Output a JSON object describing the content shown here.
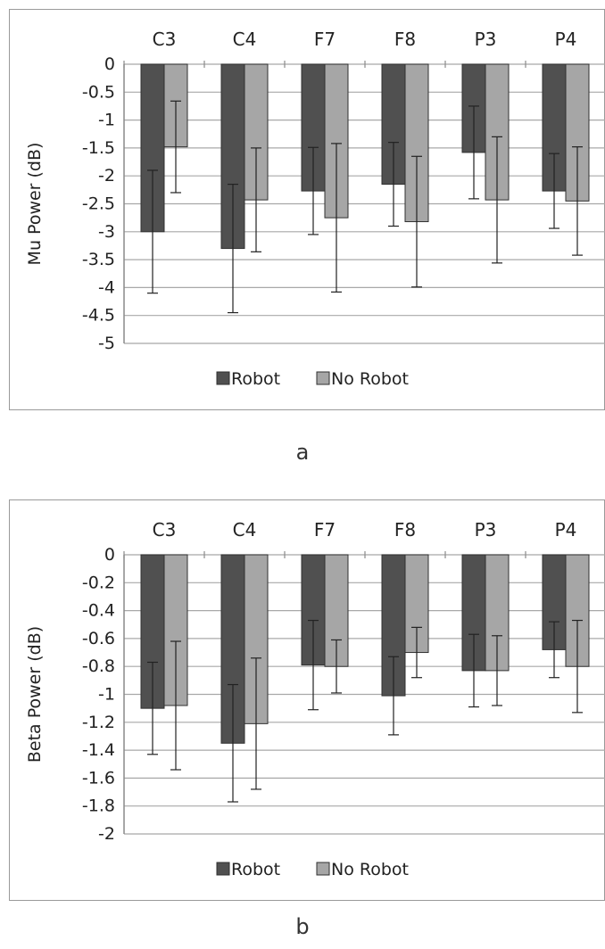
{
  "chart_data": [
    {
      "type": "bar",
      "panel_label": "a",
      "categories": [
        "C3",
        "C4",
        "F7",
        "F8",
        "P3",
        "P4"
      ],
      "ylabel": "Mu Power (dB)",
      "ylim": [
        -5,
        0
      ],
      "ytick_step": 0.5,
      "yticks": [
        "0",
        "-0.5",
        "-1",
        "-1.5",
        "-2",
        "-2.5",
        "-3",
        "-3.5",
        "-4",
        "-4.5",
        "-5"
      ],
      "category_axis": "top",
      "grid": true,
      "legend_position": "bottom",
      "series": [
        {
          "name": "Robot",
          "color": "#505050",
          "values": [
            -3.0,
            -3.3,
            -2.27,
            -2.15,
            -1.58,
            -2.27
          ],
          "error": [
            1.1,
            1.15,
            0.78,
            0.75,
            0.83,
            0.67
          ]
        },
        {
          "name": "No Robot",
          "color": "#a6a6a6",
          "values": [
            -1.48,
            -2.43,
            -2.75,
            -2.82,
            -2.43,
            -2.45
          ],
          "error": [
            0.82,
            0.93,
            1.33,
            1.17,
            1.13,
            0.97
          ]
        }
      ]
    },
    {
      "type": "bar",
      "panel_label": "b",
      "categories": [
        "C3",
        "C4",
        "F7",
        "F8",
        "P3",
        "P4"
      ],
      "ylabel": "Beta Power (dB)",
      "ylim": [
        -2,
        0
      ],
      "ytick_step": 0.2,
      "yticks": [
        "0",
        "-0.2",
        "-0.4",
        "-0.6",
        "-0.8",
        "-1",
        "-1.2",
        "-1.4",
        "-1.6",
        "-1.8",
        "-2"
      ],
      "category_axis": "top",
      "grid": true,
      "legend_position": "bottom",
      "series": [
        {
          "name": "Robot",
          "color": "#505050",
          "values": [
            -1.1,
            -1.35,
            -0.79,
            -1.01,
            -0.83,
            -0.68
          ],
          "error": [
            0.33,
            0.42,
            0.32,
            0.28,
            0.26,
            0.2
          ]
        },
        {
          "name": "No Robot",
          "color": "#a6a6a6",
          "values": [
            -1.08,
            -1.21,
            -0.8,
            -0.7,
            -0.83,
            -0.8
          ],
          "error": [
            0.46,
            0.47,
            0.19,
            0.18,
            0.25,
            0.33
          ]
        }
      ]
    }
  ]
}
